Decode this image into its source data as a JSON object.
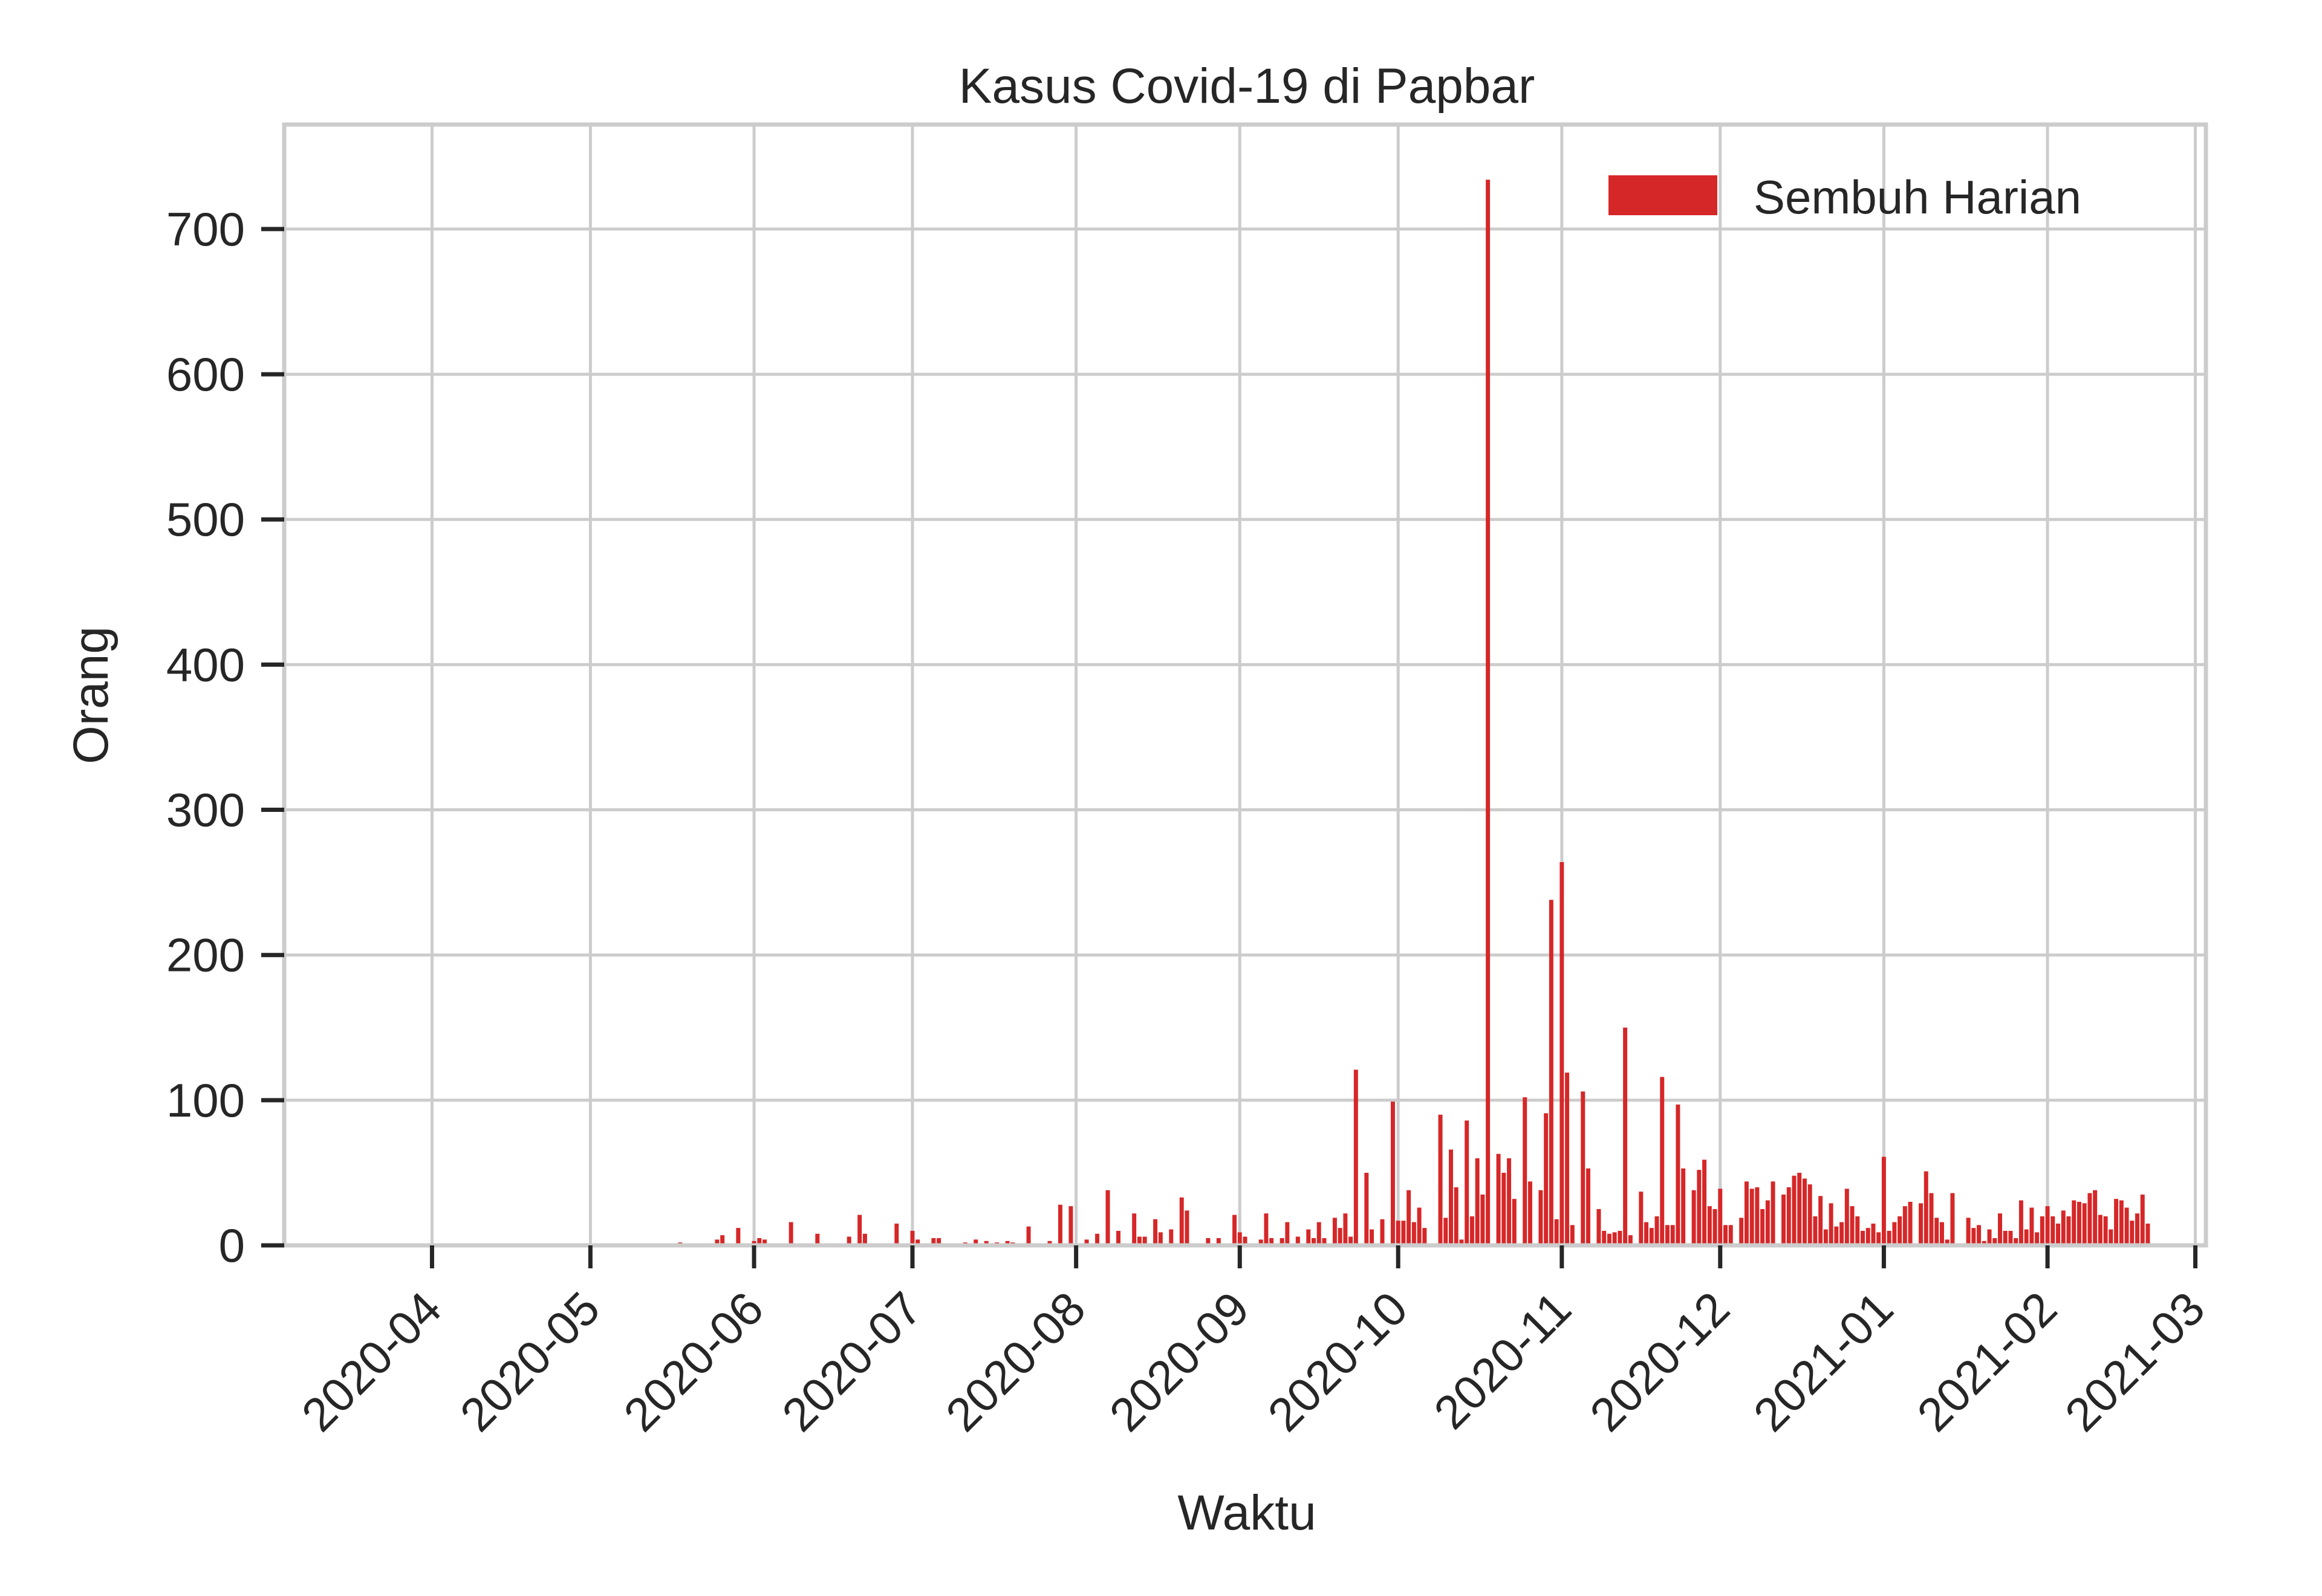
{
  "chart_data": {
    "type": "bar",
    "title": "Kasus Covid-19 di Papbar",
    "xlabel": "Waktu",
    "ylabel": "Orang",
    "x_axis": "date",
    "xlim": [
      "2020-03-04",
      "2021-03-03"
    ],
    "ylim": [
      0,
      772
    ],
    "grid": true,
    "legend_position": "top-right",
    "xticks": [
      "2020-04",
      "2020-05",
      "2020-06",
      "2020-07",
      "2020-08",
      "2020-09",
      "2020-10",
      "2020-11",
      "2020-12",
      "2021-01",
      "2021-02",
      "2021-03"
    ],
    "yticks": [
      0,
      100,
      200,
      300,
      400,
      500,
      600,
      700
    ],
    "colors": {
      "bar": "#d62728",
      "grid": "#cccccc",
      "text": "#262626"
    },
    "series": [
      {
        "name": "Sembuh Harian",
        "points": [
          [
            "2020-05-18",
            2
          ],
          [
            "2020-05-22",
            1
          ],
          [
            "2020-05-25",
            4
          ],
          [
            "2020-05-26",
            7
          ],
          [
            "2020-05-29",
            12
          ],
          [
            "2020-06-01",
            3
          ],
          [
            "2020-06-02",
            5
          ],
          [
            "2020-06-03",
            4
          ],
          [
            "2020-06-08",
            16
          ],
          [
            "2020-06-13",
            8
          ],
          [
            "2020-06-19",
            6
          ],
          [
            "2020-06-21",
            21
          ],
          [
            "2020-06-22",
            8
          ],
          [
            "2020-06-28",
            15
          ],
          [
            "2020-07-01",
            10
          ],
          [
            "2020-07-02",
            4
          ],
          [
            "2020-07-05",
            5
          ],
          [
            "2020-07-06",
            5
          ],
          [
            "2020-07-11",
            2
          ],
          [
            "2020-07-13",
            4
          ],
          [
            "2020-07-15",
            3
          ],
          [
            "2020-07-17",
            2
          ],
          [
            "2020-07-19",
            3
          ],
          [
            "2020-07-20",
            2
          ],
          [
            "2020-07-23",
            13
          ],
          [
            "2020-07-27",
            3
          ],
          [
            "2020-07-29",
            28
          ],
          [
            "2020-07-31",
            27
          ],
          [
            "2020-08-03",
            4
          ],
          [
            "2020-08-05",
            8
          ],
          [
            "2020-08-07",
            38
          ],
          [
            "2020-08-09",
            10
          ],
          [
            "2020-08-12",
            22
          ],
          [
            "2020-08-13",
            6
          ],
          [
            "2020-08-14",
            6
          ],
          [
            "2020-08-16",
            18
          ],
          [
            "2020-08-17",
            9
          ],
          [
            "2020-08-19",
            11
          ],
          [
            "2020-08-21",
            33
          ],
          [
            "2020-08-22",
            24
          ],
          [
            "2020-08-26",
            5
          ],
          [
            "2020-08-28",
            5
          ],
          [
            "2020-08-31",
            21
          ],
          [
            "2020-09-01",
            9
          ],
          [
            "2020-09-02",
            6
          ],
          [
            "2020-09-05",
            4
          ],
          [
            "2020-09-06",
            22
          ],
          [
            "2020-09-07",
            5
          ],
          [
            "2020-09-09",
            5
          ],
          [
            "2020-09-10",
            16
          ],
          [
            "2020-09-12",
            6
          ],
          [
            "2020-09-14",
            11
          ],
          [
            "2020-09-15",
            5
          ],
          [
            "2020-09-16",
            16
          ],
          [
            "2020-09-17",
            5
          ],
          [
            "2020-09-19",
            19
          ],
          [
            "2020-09-20",
            12
          ],
          [
            "2020-09-21",
            22
          ],
          [
            "2020-09-22",
            6
          ],
          [
            "2020-09-23",
            121
          ],
          [
            "2020-09-25",
            50
          ],
          [
            "2020-09-26",
            11
          ],
          [
            "2020-09-28",
            18
          ],
          [
            "2020-09-30",
            99
          ],
          [
            "2020-10-01",
            17
          ],
          [
            "2020-10-02",
            17
          ],
          [
            "2020-10-03",
            38
          ],
          [
            "2020-10-04",
            16
          ],
          [
            "2020-10-05",
            26
          ],
          [
            "2020-10-06",
            12
          ],
          [
            "2020-10-09",
            90
          ],
          [
            "2020-10-10",
            19
          ],
          [
            "2020-10-11",
            66
          ],
          [
            "2020-10-12",
            40
          ],
          [
            "2020-10-13",
            4
          ],
          [
            "2020-10-14",
            86
          ],
          [
            "2020-10-15",
            20
          ],
          [
            "2020-10-16",
            60
          ],
          [
            "2020-10-17",
            35
          ],
          [
            "2020-10-18",
            734
          ],
          [
            "2020-10-20",
            63
          ],
          [
            "2020-10-21",
            50
          ],
          [
            "2020-10-22",
            60
          ],
          [
            "2020-10-23",
            32
          ],
          [
            "2020-10-25",
            102
          ],
          [
            "2020-10-26",
            44
          ],
          [
            "2020-10-28",
            38
          ],
          [
            "2020-10-29",
            91
          ],
          [
            "2020-10-30",
            238
          ],
          [
            "2020-10-31",
            18
          ],
          [
            "2020-11-01",
            264
          ],
          [
            "2020-11-02",
            119
          ],
          [
            "2020-11-03",
            14
          ],
          [
            "2020-11-05",
            106
          ],
          [
            "2020-11-06",
            53
          ],
          [
            "2020-11-08",
            25
          ],
          [
            "2020-11-09",
            10
          ],
          [
            "2020-11-10",
            8
          ],
          [
            "2020-11-11",
            9
          ],
          [
            "2020-11-12",
            10
          ],
          [
            "2020-11-13",
            150
          ],
          [
            "2020-11-14",
            7
          ],
          [
            "2020-11-16",
            37
          ],
          [
            "2020-11-17",
            16
          ],
          [
            "2020-11-18",
            12
          ],
          [
            "2020-11-19",
            20
          ],
          [
            "2020-11-20",
            116
          ],
          [
            "2020-11-21",
            14
          ],
          [
            "2020-11-22",
            14
          ],
          [
            "2020-11-23",
            97
          ],
          [
            "2020-11-24",
            53
          ],
          [
            "2020-11-26",
            38
          ],
          [
            "2020-11-27",
            52
          ],
          [
            "2020-11-28",
            59
          ],
          [
            "2020-11-29",
            27
          ],
          [
            "2020-11-30",
            25
          ],
          [
            "2020-12-01",
            39
          ],
          [
            "2020-12-02",
            14
          ],
          [
            "2020-12-03",
            14
          ],
          [
            "2020-12-05",
            19
          ],
          [
            "2020-12-06",
            44
          ],
          [
            "2020-12-07",
            39
          ],
          [
            "2020-12-08",
            40
          ],
          [
            "2020-12-09",
            25
          ],
          [
            "2020-12-10",
            31
          ],
          [
            "2020-12-11",
            44
          ],
          [
            "2020-12-13",
            35
          ],
          [
            "2020-12-14",
            40
          ],
          [
            "2020-12-15",
            48
          ],
          [
            "2020-12-16",
            50
          ],
          [
            "2020-12-17",
            46
          ],
          [
            "2020-12-18",
            42
          ],
          [
            "2020-12-19",
            20
          ],
          [
            "2020-12-20",
            34
          ],
          [
            "2020-12-21",
            11
          ],
          [
            "2020-12-22",
            29
          ],
          [
            "2020-12-23",
            13
          ],
          [
            "2020-12-24",
            16
          ],
          [
            "2020-12-25",
            39
          ],
          [
            "2020-12-26",
            27
          ],
          [
            "2020-12-27",
            20
          ],
          [
            "2020-12-28",
            10
          ],
          [
            "2020-12-29",
            12
          ],
          [
            "2020-12-30",
            15
          ],
          [
            "2020-12-31",
            9
          ],
          [
            "2021-01-01",
            61
          ],
          [
            "2021-01-02",
            10
          ],
          [
            "2021-01-03",
            16
          ],
          [
            "2021-01-04",
            20
          ],
          [
            "2021-01-05",
            27
          ],
          [
            "2021-01-06",
            30
          ],
          [
            "2021-01-08",
            29
          ],
          [
            "2021-01-09",
            51
          ],
          [
            "2021-01-10",
            36
          ],
          [
            "2021-01-11",
            19
          ],
          [
            "2021-01-12",
            16
          ],
          [
            "2021-01-13",
            4
          ],
          [
            "2021-01-14",
            36
          ],
          [
            "2021-01-17",
            19
          ],
          [
            "2021-01-18",
            12
          ],
          [
            "2021-01-19",
            14
          ],
          [
            "2021-01-20",
            3
          ],
          [
            "2021-01-21",
            11
          ],
          [
            "2021-01-22",
            5
          ],
          [
            "2021-01-23",
            22
          ],
          [
            "2021-01-24",
            10
          ],
          [
            "2021-01-25",
            10
          ],
          [
            "2021-01-26",
            5
          ],
          [
            "2021-01-27",
            31
          ],
          [
            "2021-01-28",
            11
          ],
          [
            "2021-01-29",
            26
          ],
          [
            "2021-01-30",
            9
          ],
          [
            "2021-01-31",
            20
          ],
          [
            "2021-02-01",
            27
          ],
          [
            "2021-02-02",
            20
          ],
          [
            "2021-02-03",
            15
          ],
          [
            "2021-02-04",
            24
          ],
          [
            "2021-02-05",
            20
          ],
          [
            "2021-02-06",
            31
          ],
          [
            "2021-02-07",
            30
          ],
          [
            "2021-02-08",
            29
          ],
          [
            "2021-02-09",
            36
          ],
          [
            "2021-02-10",
            38
          ],
          [
            "2021-02-11",
            21
          ],
          [
            "2021-02-12",
            20
          ],
          [
            "2021-02-13",
            11
          ],
          [
            "2021-02-14",
            32
          ],
          [
            "2021-02-15",
            31
          ],
          [
            "2021-02-16",
            26
          ],
          [
            "2021-02-17",
            17
          ],
          [
            "2021-02-18",
            22
          ],
          [
            "2021-02-19",
            35
          ],
          [
            "2021-02-20",
            15
          ]
        ]
      }
    ]
  }
}
